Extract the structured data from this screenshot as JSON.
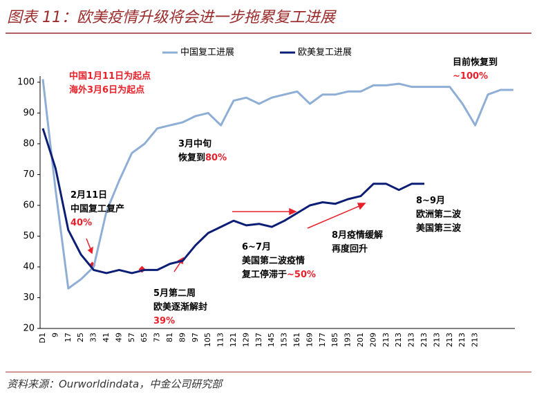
{
  "chart_data": {
    "type": "line",
    "title": "图表 11：欧美疫情升级将会进一步拖累复工进展",
    "source": "资料来源：Ourworldindata，中金公司研究部",
    "categories": [
      "D1",
      "9",
      "17",
      "25",
      "33",
      "41",
      "49",
      "57",
      "65",
      "73",
      "81",
      "89",
      "97",
      "105",
      "113",
      "121",
      "129",
      "137",
      "145",
      "153",
      "161",
      "169",
      "177",
      "185",
      "193",
      "201",
      "209",
      "213",
      "213",
      "213",
      "213",
      "213",
      "213",
      "213",
      "213",
      null,
      null,
      null
    ],
    "series": [
      {
        "name": "中国复工进展",
        "color": "#8eaed6",
        "values": [
          101,
          65,
          33,
          36,
          40,
          58,
          68,
          77,
          80,
          85,
          86,
          87,
          89,
          90,
          86,
          94,
          95,
          93,
          95,
          96,
          97,
          93,
          96,
          96,
          97,
          97,
          99,
          99,
          99.5,
          98.5,
          98.5,
          98.5,
          98.5,
          93,
          86,
          96,
          97.5,
          97.5
        ]
      },
      {
        "name": "欧美复工进展",
        "color": "#0b1d75",
        "values": [
          85,
          72,
          52,
          44,
          39,
          38,
          39,
          38,
          39,
          39,
          41,
          42,
          47,
          51,
          53,
          55,
          53.5,
          54,
          53,
          55,
          57.5,
          60,
          61,
          60.5,
          62,
          63,
          67,
          67,
          65,
          67,
          67,
          null,
          null,
          null,
          null,
          null,
          null,
          null
        ]
      }
    ],
    "ylim": [
      20,
      102
    ],
    "yticks": [
      20,
      30,
      40,
      50,
      60,
      70,
      80,
      90,
      100
    ],
    "annotations": [
      {
        "lines": [
          [
            {
              "text": "中国1月11日为起点",
              "color": "#e8202a"
            }
          ],
          [
            {
              "text": "海外3月6日为起点",
              "color": "#e8202a"
            }
          ]
        ]
      },
      {
        "lines": [
          [
            {
              "text": "目前恢复到",
              "color": "#000000"
            }
          ],
          [
            {
              "text": "~100%",
              "color": "#e8202a"
            }
          ]
        ]
      },
      {
        "lines": [
          [
            {
              "text": "3月中旬",
              "color": "#000000"
            }
          ],
          [
            {
              "text": "恢复到",
              "color": "#000000"
            },
            {
              "text": "80%",
              "color": "#e8202a"
            }
          ]
        ]
      },
      {
        "lines": [
          [
            {
              "text": "2月11日",
              "color": "#000000"
            }
          ],
          [
            {
              "text": "中国复工复产",
              "color": "#000000"
            }
          ],
          [
            {
              "text": "40%",
              "color": "#e8202a"
            }
          ]
        ]
      },
      {
        "lines": [
          [
            {
              "text": "6~7月",
              "color": "#000000"
            }
          ],
          [
            {
              "text": "美国第二波疫情",
              "color": "#000000"
            }
          ],
          [
            {
              "text": "复工停滞于",
              "color": "#000000"
            },
            {
              "text": "~50%",
              "color": "#e8202a"
            }
          ]
        ]
      },
      {
        "lines": [
          [
            {
              "text": "8月疫情缓解",
              "color": "#000000"
            }
          ],
          [
            {
              "text": "再度回升",
              "color": "#000000"
            }
          ]
        ]
      },
      {
        "lines": [
          [
            {
              "text": "8~9月",
              "color": "#000000"
            }
          ],
          [
            {
              "text": "欧洲第二波",
              "color": "#000000"
            }
          ],
          [
            {
              "text": "美国第三波",
              "color": "#000000"
            }
          ]
        ]
      },
      {
        "lines": [
          [
            {
              "text": "5月第二周",
              "color": "#000000"
            }
          ],
          [
            {
              "text": "欧美逐渐解封",
              "color": "#000000"
            }
          ],
          [
            {
              "text": "39%",
              "color": "#e8202a"
            }
          ]
        ]
      }
    ]
  }
}
